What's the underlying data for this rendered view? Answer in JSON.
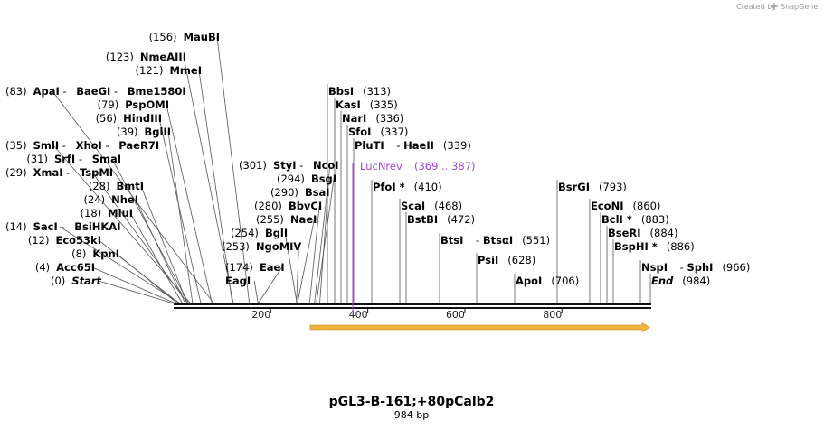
{
  "credit": {
    "text": "Created by",
    "brand": "SnapGene"
  },
  "title": "pGL3-B-161;+80pCalb2",
  "subtitle": "984 bp",
  "length": 984,
  "ticks": [
    "200",
    "400",
    "600",
    "800"
  ],
  "tick_values": [
    200,
    400,
    600,
    800
  ],
  "feature": {
    "name": "LucNrev",
    "range": "(369 .. 387)",
    "start": 369,
    "end": 387,
    "color": "#a347d6"
  },
  "orf": {
    "start": 300,
    "end": 984,
    "color": "#f2b33d"
  },
  "sites": [
    {
      "pos": 0,
      "parts": [
        {
          "t": "(0)",
          "s": "pos"
        },
        {
          "t": "Start",
          "s": "nm it"
        }
      ]
    },
    {
      "pos": 4,
      "parts": [
        {
          "t": "(4)",
          "s": "pos"
        },
        {
          "t": "Acc65I",
          "s": "nm"
        }
      ]
    },
    {
      "pos": 8,
      "parts": [
        {
          "t": "(8)",
          "s": "pos"
        },
        {
          "t": "KpnI",
          "s": "nm"
        }
      ]
    },
    {
      "pos": 12,
      "parts": [
        {
          "t": "(12)",
          "s": "pos"
        },
        {
          "t": "Eco53kI",
          "s": "nm"
        }
      ]
    },
    {
      "pos": 14,
      "parts": [
        {
          "t": "(14)",
          "s": "pos"
        },
        {
          "t": "SacI",
          "s": "nm"
        },
        {
          "t": " - ",
          "s": "pos"
        },
        {
          "t": "BsiHKAI",
          "s": "nm"
        }
      ]
    },
    {
      "pos": 18,
      "parts": [
        {
          "t": "(18)",
          "s": "pos"
        },
        {
          "t": "MluI",
          "s": "nm"
        }
      ]
    },
    {
      "pos": 24,
      "parts": [
        {
          "t": "(24)",
          "s": "pos"
        },
        {
          "t": "NheI",
          "s": "nm"
        }
      ]
    },
    {
      "pos": 28,
      "parts": [
        {
          "t": "(28)",
          "s": "pos"
        },
        {
          "t": "BmtI",
          "s": "nm"
        }
      ]
    },
    {
      "pos": 29,
      "parts": [
        {
          "t": "(29)",
          "s": "pos"
        },
        {
          "t": "XmaI",
          "s": "nm"
        },
        {
          "t": " - ",
          "s": "pos"
        },
        {
          "t": "TspMI",
          "s": "nm"
        }
      ]
    },
    {
      "pos": 31,
      "parts": [
        {
          "t": "(31)",
          "s": "pos"
        },
        {
          "t": "SrfI",
          "s": "nm"
        },
        {
          "t": " - ",
          "s": "pos"
        },
        {
          "t": "SmaI",
          "s": "nm"
        }
      ]
    },
    {
      "pos": 35,
      "parts": [
        {
          "t": "(35)",
          "s": "pos"
        },
        {
          "t": "SmlI",
          "s": "nm"
        },
        {
          "t": " - ",
          "s": "pos"
        },
        {
          "t": "XhoI",
          "s": "nm"
        },
        {
          "t": " - ",
          "s": "pos"
        },
        {
          "t": "PaeR7I",
          "s": "nm"
        }
      ]
    },
    {
      "pos": 39,
      "parts": [
        {
          "t": "(39)",
          "s": "pos"
        },
        {
          "t": "BglII",
          "s": "nm"
        }
      ]
    },
    {
      "pos": 56,
      "parts": [
        {
          "t": "(56)",
          "s": "pos"
        },
        {
          "t": "HindIII",
          "s": "nm"
        }
      ]
    },
    {
      "pos": 79,
      "parts": [
        {
          "t": "(79)",
          "s": "pos"
        },
        {
          "t": "PspOMI",
          "s": "nm"
        }
      ]
    },
    {
      "pos": 83,
      "parts": [
        {
          "t": "(83)",
          "s": "pos"
        },
        {
          "t": "ApaI",
          "s": "nm"
        },
        {
          "t": " - ",
          "s": "pos"
        },
        {
          "t": "BaeGI",
          "s": "nm"
        },
        {
          "t": " - ",
          "s": "pos"
        },
        {
          "t": "Bme1580I",
          "s": "nm"
        }
      ]
    },
    {
      "pos": 121,
      "parts": [
        {
          "t": "(121)",
          "s": "pos"
        },
        {
          "t": "MmeI",
          "s": "nm"
        }
      ]
    },
    {
      "pos": 123,
      "parts": [
        {
          "t": "(123)",
          "s": "pos"
        },
        {
          "t": "NmeAIII",
          "s": "nm"
        }
      ]
    },
    {
      "pos": 156,
      "parts": [
        {
          "t": "(156)",
          "s": "pos"
        },
        {
          "t": "MauBI",
          "s": "nm"
        }
      ]
    },
    {
      "pos": 174,
      "parts": [
        {
          "t": "(174)",
          "s": "pos"
        },
        {
          "t": "EaeI",
          "s": "nm"
        }
      ]
    },
    {
      "pos": 174,
      "parts": [
        {
          "t": "EagI",
          "s": "nm"
        }
      ]
    },
    {
      "pos": 253,
      "parts": [
        {
          "t": "(253)",
          "s": "pos"
        },
        {
          "t": "NgoMIV",
          "s": "nm"
        }
      ]
    },
    {
      "pos": 254,
      "parts": [
        {
          "t": "(254)",
          "s": "pos"
        },
        {
          "t": "BglI",
          "s": "nm"
        }
      ]
    },
    {
      "pos": 255,
      "parts": [
        {
          "t": "(255)",
          "s": "pos"
        },
        {
          "t": "NaeI",
          "s": "nm"
        }
      ]
    },
    {
      "pos": 280,
      "parts": [
        {
          "t": "(280)",
          "s": "pos"
        },
        {
          "t": "BbvCI",
          "s": "nm"
        }
      ]
    },
    {
      "pos": 290,
      "parts": [
        {
          "t": "(290)",
          "s": "pos"
        },
        {
          "t": "BsaI",
          "s": "nm"
        }
      ]
    },
    {
      "pos": 294,
      "parts": [
        {
          "t": "(294)",
          "s": "pos"
        },
        {
          "t": "BsgI",
          "s": "nm"
        }
      ]
    },
    {
      "pos": 301,
      "parts": [
        {
          "t": "(301)",
          "s": "pos"
        },
        {
          "t": "StyI",
          "s": "nm"
        },
        {
          "t": " - ",
          "s": "pos"
        },
        {
          "t": "NcoI",
          "s": "nm"
        }
      ]
    },
    {
      "pos": 313,
      "parts": [
        {
          "t": "BbsI",
          "s": "nm"
        },
        {
          "t": "(313)",
          "s": "pos"
        }
      ]
    },
    {
      "pos": 335,
      "parts": [
        {
          "t": "KasI",
          "s": "nm"
        },
        {
          "t": "(335)",
          "s": "pos"
        }
      ]
    },
    {
      "pos": 336,
      "parts": [
        {
          "t": "NarI",
          "s": "nm"
        },
        {
          "t": "(336)",
          "s": "pos"
        }
      ]
    },
    {
      "pos": 337,
      "parts": [
        {
          "t": "SfoI",
          "s": "nm"
        },
        {
          "t": "(337)",
          "s": "pos"
        }
      ]
    },
    {
      "pos": 339,
      "parts": [
        {
          "t": "PluTI",
          "s": "nm"
        },
        {
          "t": " - ",
          "s": "pos"
        },
        {
          "t": "HaeII",
          "s": "nm"
        },
        {
          "t": "(339)",
          "s": "pos"
        }
      ]
    },
    {
      "pos": 410,
      "parts": [
        {
          "t": "PfoI *",
          "s": "nm"
        },
        {
          "t": "(410)",
          "s": "pos"
        }
      ]
    },
    {
      "pos": 468,
      "parts": [
        {
          "t": "ScaI",
          "s": "nm"
        },
        {
          "t": "(468)",
          "s": "pos"
        }
      ]
    },
    {
      "pos": 472,
      "parts": [
        {
          "t": "BstBI",
          "s": "nm"
        },
        {
          "t": "(472)",
          "s": "pos"
        }
      ]
    },
    {
      "pos": 551,
      "parts": [
        {
          "t": "BtsI",
          "s": "nm"
        },
        {
          "t": " - ",
          "s": "pos"
        },
        {
          "t": "BtsαI",
          "s": "nm"
        },
        {
          "t": "(551)",
          "s": "pos"
        }
      ]
    },
    {
      "pos": 628,
      "parts": [
        {
          "t": "PsiI",
          "s": "nm"
        },
        {
          "t": "(628)",
          "s": "pos"
        }
      ]
    },
    {
      "pos": 706,
      "parts": [
        {
          "t": "ApoI",
          "s": "nm"
        },
        {
          "t": "(706)",
          "s": "pos"
        }
      ]
    },
    {
      "pos": 793,
      "parts": [
        {
          "t": "BsrGI",
          "s": "nm"
        },
        {
          "t": "(793)",
          "s": "pos"
        }
      ]
    },
    {
      "pos": 860,
      "parts": [
        {
          "t": "EcoNI",
          "s": "nm"
        },
        {
          "t": "(860)",
          "s": "pos"
        }
      ]
    },
    {
      "pos": 883,
      "parts": [
        {
          "t": "BclI *",
          "s": "nm"
        },
        {
          "t": "(883)",
          "s": "pos"
        }
      ]
    },
    {
      "pos": 884,
      "parts": [
        {
          "t": "BseRI",
          "s": "nm"
        },
        {
          "t": "(884)",
          "s": "pos"
        }
      ]
    },
    {
      "pos": 886,
      "parts": [
        {
          "t": "BspHI *",
          "s": "nm"
        },
        {
          "t": "(886)",
          "s": "pos"
        }
      ]
    },
    {
      "pos": 966,
      "parts": [
        {
          "t": "NspI",
          "s": "nm"
        },
        {
          "t": " - ",
          "s": "pos"
        },
        {
          "t": "SphI",
          "s": "nm"
        },
        {
          "t": "(966)",
          "s": "pos"
        }
      ]
    },
    {
      "pos": 984,
      "parts": [
        {
          "t": "End",
          "s": "nm it"
        },
        {
          "t": "(984)",
          "s": "pos"
        }
      ]
    }
  ]
}
